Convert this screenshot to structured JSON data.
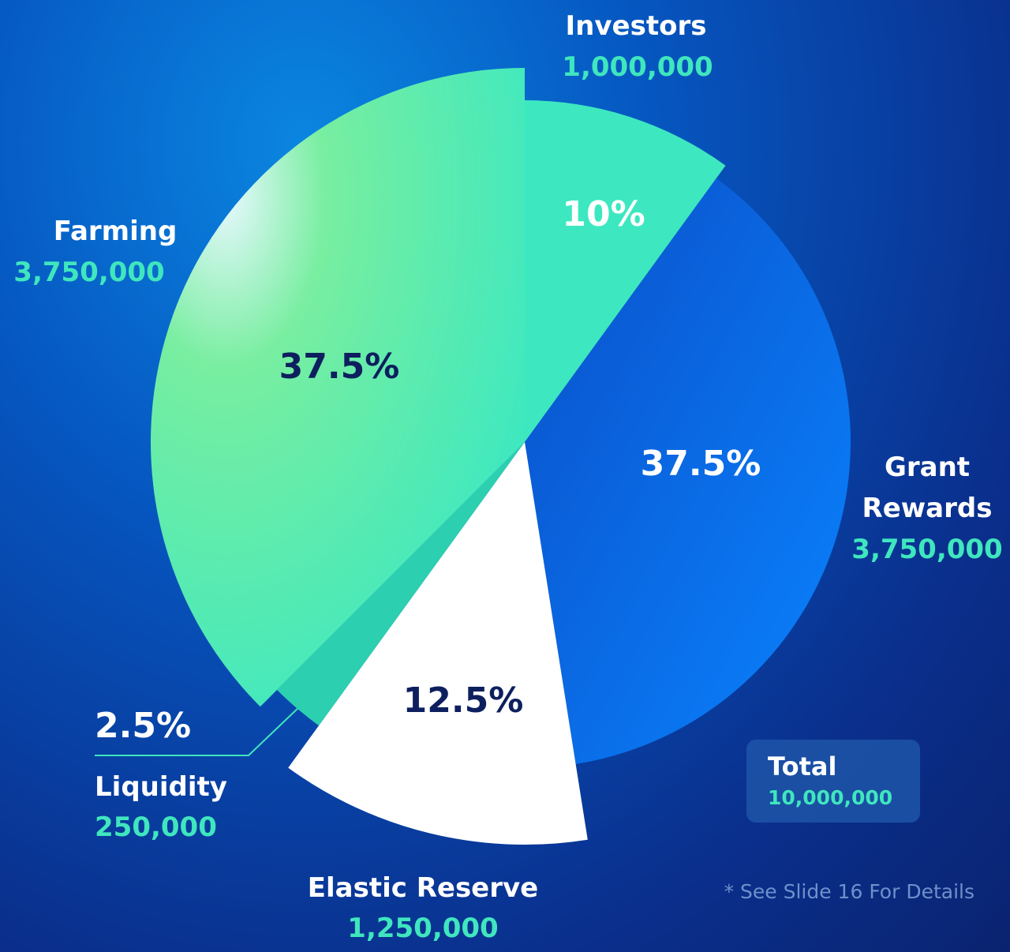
{
  "chart_data": {
    "type": "pie",
    "categories": [
      "Investors",
      "Grant Rewards",
      "Elastic Reserve",
      "Liquidity",
      "Farming"
    ],
    "values": [
      10,
      37.5,
      12.5,
      2.5,
      37.5
    ],
    "value_labels": [
      "10%",
      "37.5%",
      "12.5%",
      "2.5%",
      "37.5%"
    ],
    "amounts": [
      "1,000,000",
      "3,750,000",
      "1,250,000",
      "250,000",
      "3,750,000"
    ],
    "colors": [
      "#3de8c0",
      "#0a6fe0",
      "#ffffff",
      "#2ccfb0",
      "#5ee6a8"
    ],
    "total": {
      "label": "Total",
      "amount": "10,000,000"
    },
    "footnote": "* See Slide 16 For Details"
  }
}
